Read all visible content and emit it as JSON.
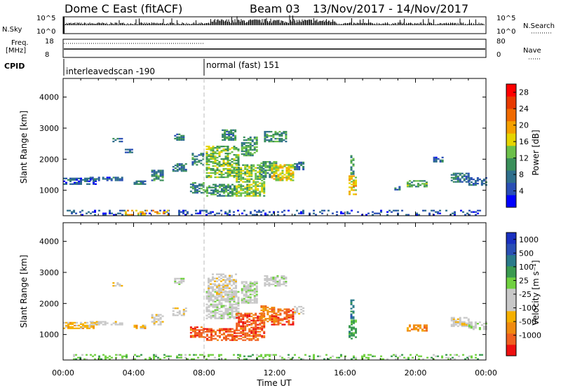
{
  "header": {
    "title": "Dome C East (fitACF)",
    "beam": "Beam 03",
    "date_range": "13/Nov/2017 - 14/Nov/2017"
  },
  "strip_labels": {
    "nsky": "N.Sky",
    "nsky_ticks": [
      "10^5",
      "10^0"
    ],
    "nsearch": "N.Search",
    "nsearch_ticks": [
      "10^5",
      "10^0"
    ],
    "freq": "Freq.",
    "freq_unit": "[MHz]",
    "freq_ticks": [
      "18",
      "8"
    ],
    "nave": "Nave",
    "nave_ticks": [
      "80",
      "0"
    ],
    "cpid": "CPID"
  },
  "cpid_segments": [
    {
      "label": "interleavedscan -190",
      "start_hour": 0
    },
    {
      "label": "normal (fast) 151",
      "start_hour": 8
    }
  ],
  "colors": {
    "power_bar": [
      "#0000ff",
      "#2a4fb5",
      "#2f6f8c",
      "#3a8f5a",
      "#6cc04a",
      "#e6d400",
      "#f5a000",
      "#f06a00",
      "#e83a00",
      "#ff0000"
    ],
    "velocity_bar": [
      "#ee1010",
      "#f06020",
      "#f08a10",
      "#f5b000",
      "#c8c8c8",
      "#c8c8c8",
      "#70d040",
      "#3a9a50",
      "#2a7a8a",
      "#2a4fb5",
      "#1a30c0"
    ]
  },
  "chart_data": [
    {
      "type": "heatmap",
      "name": "power-panel",
      "xlabel": "",
      "ylabel": "Slant Range [km]",
      "xlim": [
        0,
        24
      ],
      "ylim": [
        180,
        4600
      ],
      "yticks": [
        "1000",
        "2000",
        "3000",
        "4000"
      ],
      "colorbar_label": "Power [dB]",
      "colorbar_ticks": [
        "4",
        "8",
        "12",
        "16",
        "20",
        "24",
        "28"
      ],
      "colorbar_range": [
        0,
        30
      ],
      "blobs": [
        {
          "t0": 0.0,
          "t1": 1.8,
          "r0": 1180,
          "r1": 1380,
          "v": 6
        },
        {
          "t0": 1.5,
          "t1": 3.3,
          "r0": 1300,
          "r1": 1420,
          "v": 6
        },
        {
          "t0": 2.8,
          "t1": 3.3,
          "r0": 2550,
          "r1": 2650,
          "v": 7
        },
        {
          "t0": 3.5,
          "t1": 3.9,
          "r0": 2200,
          "r1": 2300,
          "v": 7
        },
        {
          "t0": 4.0,
          "t1": 4.6,
          "r0": 1180,
          "r1": 1300,
          "v": 8
        },
        {
          "t0": 5.0,
          "t1": 5.6,
          "r0": 1300,
          "r1": 1650,
          "v": 9
        },
        {
          "t0": 6.3,
          "t1": 6.8,
          "r0": 2600,
          "r1": 2800,
          "v": 8
        },
        {
          "t0": 6.2,
          "t1": 7.0,
          "r0": 1600,
          "r1": 1850,
          "v": 8
        },
        {
          "t0": 7.2,
          "t1": 8.0,
          "r0": 900,
          "r1": 1250,
          "v": 9
        },
        {
          "t0": 7.3,
          "t1": 8.0,
          "r0": 1800,
          "r1": 2200,
          "v": 9
        },
        {
          "t0": 8.0,
          "t1": 9.8,
          "r0": 800,
          "r1": 1200,
          "v": 10
        },
        {
          "t0": 8.1,
          "t1": 9.9,
          "r0": 1400,
          "r1": 2400,
          "v": 13
        },
        {
          "t0": 9.0,
          "t1": 9.8,
          "r0": 2600,
          "r1": 2950,
          "v": 9
        },
        {
          "t0": 9.8,
          "t1": 11.4,
          "r0": 800,
          "r1": 1800,
          "v": 14
        },
        {
          "t0": 10.1,
          "t1": 11.0,
          "r0": 2100,
          "r1": 2700,
          "v": 11
        },
        {
          "t0": 11.2,
          "t1": 12.1,
          "r0": 1400,
          "r1": 1900,
          "v": 11
        },
        {
          "t0": 11.8,
          "t1": 13.0,
          "r0": 1300,
          "r1": 1800,
          "v": 16
        },
        {
          "t0": 11.4,
          "t1": 12.6,
          "r0": 2550,
          "r1": 2900,
          "v": 10
        },
        {
          "t0": 13.1,
          "t1": 13.6,
          "r0": 1650,
          "r1": 1900,
          "v": 8
        },
        {
          "t0": 16.2,
          "t1": 16.6,
          "r0": 850,
          "r1": 1450,
          "v": 18
        },
        {
          "t0": 16.3,
          "t1": 16.5,
          "r0": 1500,
          "r1": 2100,
          "v": 10
        },
        {
          "t0": 19.5,
          "t1": 20.6,
          "r0": 1100,
          "r1": 1300,
          "v": 12
        },
        {
          "t0": 18.8,
          "t1": 19.1,
          "r0": 1000,
          "r1": 1100,
          "v": 7
        },
        {
          "t0": 22.0,
          "t1": 23.0,
          "r0": 1250,
          "r1": 1550,
          "v": 8
        },
        {
          "t0": 23.0,
          "t1": 24.0,
          "r0": 1150,
          "r1": 1400,
          "v": 7
        },
        {
          "t0": 21.0,
          "t1": 21.5,
          "r0": 1900,
          "r1": 2050,
          "v": 6
        },
        {
          "t0": 0.2,
          "t1": 23.8,
          "r0": 190,
          "r1": 330,
          "v": 5,
          "sparse": true
        },
        {
          "t0": 3.5,
          "t1": 6.0,
          "r0": 190,
          "r1": 330,
          "v": 18,
          "sparse": true
        }
      ]
    },
    {
      "type": "heatmap",
      "name": "velocity-panel",
      "xlabel": "Time UT",
      "ylabel": "Slant Range [km]",
      "xlim": [
        0,
        24
      ],
      "ylim": [
        180,
        4600
      ],
      "xticks": [
        "00:00",
        "04:00",
        "08:00",
        "12:00",
        "16:00",
        "20:00",
        "00:00"
      ],
      "yticks": [
        "1000",
        "2000",
        "3000",
        "4000"
      ],
      "colorbar_label": "Velocity [m s⁻¹]",
      "colorbar_ticks": [
        "-1000",
        "-500",
        "-100",
        "-25",
        "25",
        "100",
        "500",
        "1000"
      ],
      "blobs": [
        {
          "t0": 0.0,
          "t1": 1.8,
          "r0": 1180,
          "r1": 1380,
          "c": 3
        },
        {
          "t0": 1.5,
          "t1": 3.3,
          "r0": 1300,
          "r1": 1420,
          "c": 4
        },
        {
          "t0": 2.8,
          "t1": 3.3,
          "r0": 2550,
          "r1": 2650,
          "c": 4
        },
        {
          "t0": 4.0,
          "t1": 4.6,
          "r0": 1180,
          "r1": 1300,
          "c": 3
        },
        {
          "t0": 5.0,
          "t1": 5.6,
          "r0": 1300,
          "r1": 1650,
          "c": 4
        },
        {
          "t0": 6.3,
          "t1": 6.8,
          "r0": 2600,
          "r1": 2800,
          "c": 5
        },
        {
          "t0": 6.2,
          "t1": 7.0,
          "r0": 1600,
          "r1": 1850,
          "c": 4
        },
        {
          "t0": 7.2,
          "t1": 8.0,
          "r0": 900,
          "r1": 1250,
          "c": 1
        },
        {
          "t0": 8.0,
          "t1": 9.8,
          "r0": 800,
          "r1": 1200,
          "c": 1
        },
        {
          "t0": 8.1,
          "t1": 9.9,
          "r0": 1500,
          "r1": 2400,
          "c": 5
        },
        {
          "t0": 8.2,
          "t1": 9.8,
          "r0": 2200,
          "r1": 2950,
          "c": 4
        },
        {
          "t0": 9.8,
          "t1": 11.4,
          "r0": 800,
          "r1": 1700,
          "c": 1
        },
        {
          "t0": 10.1,
          "t1": 11.0,
          "r0": 2000,
          "r1": 2700,
          "c": 5
        },
        {
          "t0": 11.2,
          "t1": 12.1,
          "r0": 1400,
          "r1": 1900,
          "c": 2
        },
        {
          "t0": 11.8,
          "t1": 13.0,
          "r0": 1300,
          "r1": 1800,
          "c": 1
        },
        {
          "t0": 11.4,
          "t1": 12.6,
          "r0": 2550,
          "r1": 2900,
          "c": 5
        },
        {
          "t0": 13.1,
          "t1": 13.6,
          "r0": 1650,
          "r1": 1900,
          "c": 4
        },
        {
          "t0": 16.2,
          "t1": 16.6,
          "r0": 850,
          "r1": 1450,
          "c": 7
        },
        {
          "t0": 16.3,
          "t1": 16.5,
          "r0": 1500,
          "r1": 2100,
          "c": 8
        },
        {
          "t0": 19.5,
          "t1": 20.6,
          "r0": 1100,
          "r1": 1300,
          "c": 2
        },
        {
          "t0": 22.0,
          "t1": 23.0,
          "r0": 1250,
          "r1": 1550,
          "c": 4
        },
        {
          "t0": 23.0,
          "t1": 24.0,
          "r0": 1150,
          "r1": 1400,
          "c": 5
        },
        {
          "t0": 0.2,
          "t1": 23.8,
          "r0": 190,
          "r1": 330,
          "c": 6,
          "sparse": true
        }
      ]
    }
  ]
}
